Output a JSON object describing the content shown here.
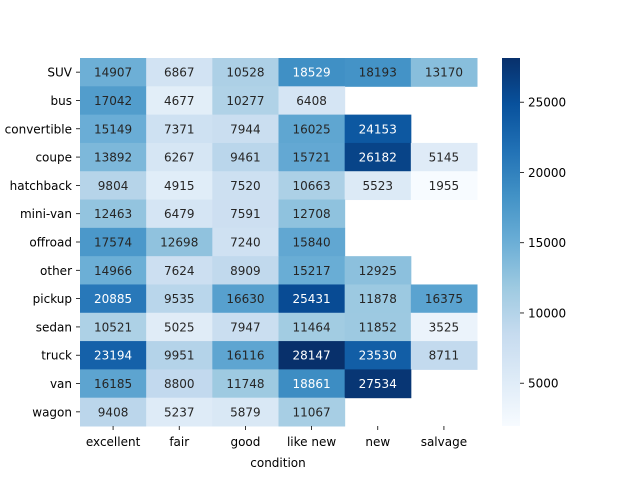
{
  "chart_data": {
    "type": "heatmap",
    "title": "",
    "xlabel": "condition",
    "ylabel": "",
    "x_categories": [
      "excellent",
      "fair",
      "good",
      "like new",
      "new",
      "salvage"
    ],
    "y_categories": [
      "SUV",
      "bus",
      "convertible",
      "coupe",
      "hatchback",
      "mini-van",
      "offroad",
      "other",
      "pickup",
      "sedan",
      "truck",
      "van",
      "wagon"
    ],
    "values": [
      [
        14907,
        6867,
        10528,
        18529,
        18193,
        13170
      ],
      [
        17042,
        4677,
        10277,
        6408,
        null,
        null
      ],
      [
        15149,
        7371,
        7944,
        16025,
        24153,
        null
      ],
      [
        13892,
        6267,
        9461,
        15721,
        26182,
        5145
      ],
      [
        9804,
        4915,
        7520,
        10663,
        5523,
        1955
      ],
      [
        12463,
        6479,
        7591,
        12708,
        null,
        null
      ],
      [
        17574,
        12698,
        7240,
        15840,
        null,
        null
      ],
      [
        14966,
        7624,
        8909,
        15217,
        12925,
        null
      ],
      [
        20885,
        9535,
        16630,
        25431,
        11878,
        16375
      ],
      [
        10521,
        5025,
        7947,
        11464,
        11852,
        3525
      ],
      [
        23194,
        9951,
        16116,
        28147,
        23530,
        8711
      ],
      [
        16185,
        8800,
        11748,
        18861,
        27534,
        null
      ],
      [
        9408,
        5237,
        5879,
        11067,
        null,
        null
      ]
    ],
    "colormap": "Blues",
    "vmin": 1955,
    "vmax": 28147,
    "colorbar_ticks": [
      5000,
      10000,
      15000,
      20000,
      25000
    ],
    "colorbar_tick_labels": [
      "5000",
      "10000",
      "15000",
      "20000",
      "25000"
    ],
    "annotations": true
  }
}
